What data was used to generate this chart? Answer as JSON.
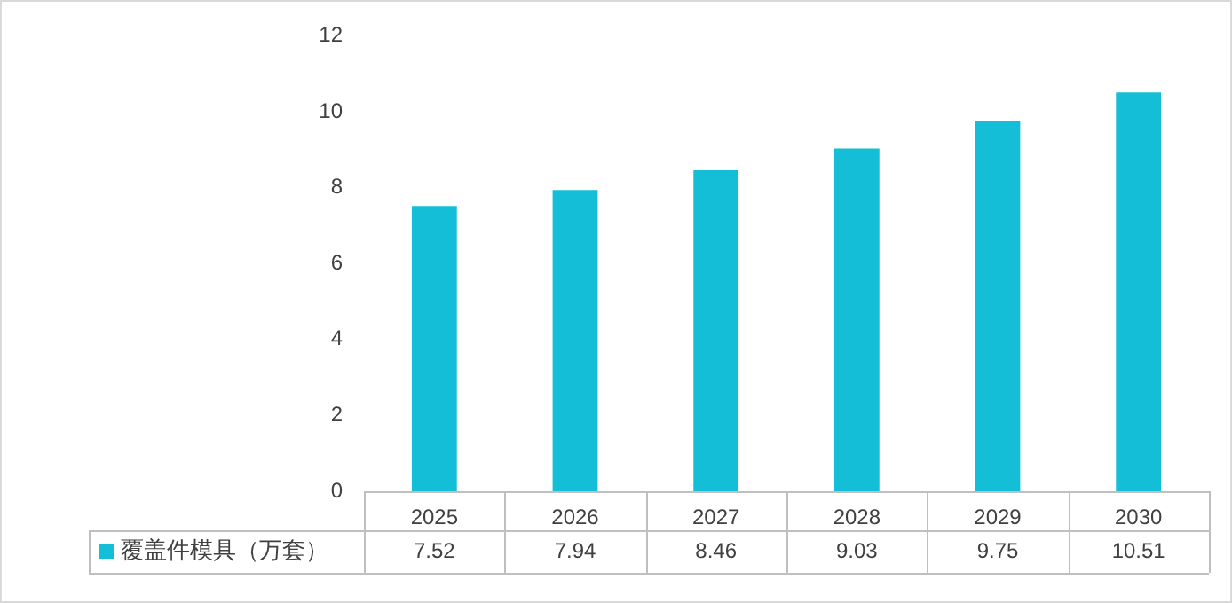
{
  "chart_data": {
    "type": "bar",
    "categories": [
      "2025",
      "2026",
      "2027",
      "2028",
      "2029",
      "2030"
    ],
    "series": [
      {
        "name": "覆盖件模具（万套）",
        "color": "#13bed6",
        "values": [
          7.52,
          7.94,
          8.46,
          9.03,
          9.75,
          10.51
        ]
      }
    ],
    "ylim": [
      0,
      12
    ],
    "yticks": [
      0,
      2,
      4,
      6,
      8,
      10,
      12
    ],
    "grid": false,
    "legend": "bottom",
    "data_labels": true
  }
}
